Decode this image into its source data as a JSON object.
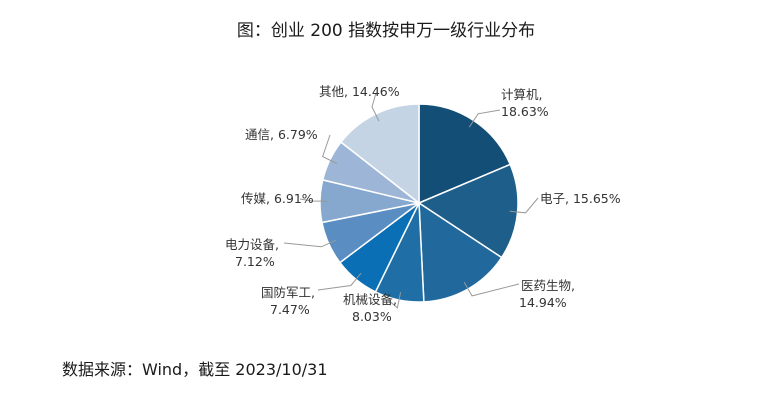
{
  "title": "图：创业 200 指数按申万一级行业分布",
  "source": "数据来源：Wind，截至 2023/10/31",
  "colors": {
    "slices": [
      "#134e76",
      "#1d5f8a",
      "#21689d",
      "#1f6ea6",
      "#0a6fb5",
      "#5a8ec2",
      "#86a8cf",
      "#9db6d8",
      "#c5d4e5"
    ],
    "leader": "#999999"
  },
  "chart_data": {
    "type": "pie",
    "title": "图：创业 200 指数按申万一级行业分布",
    "slices": [
      {
        "name": "计算机",
        "value": 18.63,
        "label": "18.63%"
      },
      {
        "name": "电子",
        "value": 15.65,
        "label": "15.65%"
      },
      {
        "name": "医药生物",
        "value": 14.94,
        "label": "14.94%"
      },
      {
        "name": "机械设备",
        "value": 8.03,
        "label": "8.03%"
      },
      {
        "name": "国防军工",
        "value": 7.47,
        "label": "7.47%"
      },
      {
        "name": "电力设备",
        "value": 7.12,
        "label": "7.12%"
      },
      {
        "name": "传媒",
        "value": 6.91,
        "label": "6.91%"
      },
      {
        "name": "通信",
        "value": 6.79,
        "label": "6.79%"
      },
      {
        "name": "其他",
        "value": 14.46,
        "label": "14.46%"
      }
    ]
  }
}
